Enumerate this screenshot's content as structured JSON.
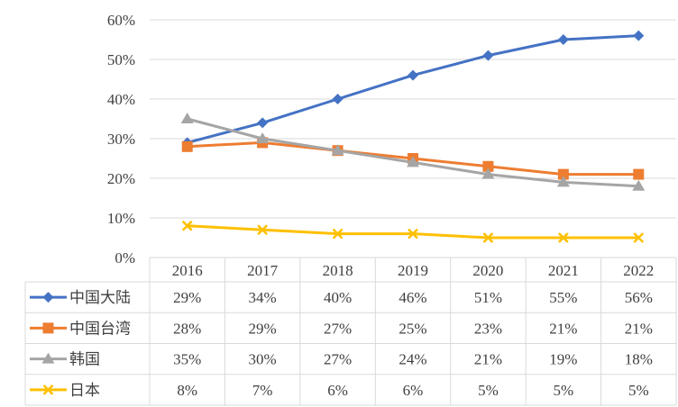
{
  "chart_data": {
    "type": "line",
    "title": "",
    "xlabel": "",
    "ylabel": "",
    "ylim": [
      0,
      60
    ],
    "y_ticks": [
      "0%",
      "10%",
      "20%",
      "30%",
      "40%",
      "50%",
      "60%"
    ],
    "y_tick_values": [
      0,
      10,
      20,
      30,
      40,
      50,
      60
    ],
    "grid": true,
    "legend": "data-table-left",
    "categories": [
      "2016",
      "2017",
      "2018",
      "2019",
      "2020",
      "2021",
      "2022"
    ],
    "series": [
      {
        "name": "中国大陆",
        "color": "#4472C4",
        "marker": "diamond",
        "values": [
          29,
          34,
          40,
          46,
          51,
          55,
          56
        ],
        "labels": [
          "29%",
          "34%",
          "40%",
          "46%",
          "51%",
          "55%",
          "56%"
        ]
      },
      {
        "name": "中国台湾",
        "color": "#ED7D31",
        "marker": "square",
        "values": [
          28,
          29,
          27,
          25,
          23,
          21,
          21
        ],
        "labels": [
          "28%",
          "29%",
          "27%",
          "25%",
          "23%",
          "21%",
          "21%"
        ]
      },
      {
        "name": "韩国",
        "color": "#A5A5A5",
        "marker": "triangle",
        "values": [
          35,
          30,
          27,
          24,
          21,
          19,
          18
        ],
        "labels": [
          "35%",
          "30%",
          "27%",
          "24%",
          "21%",
          "19%",
          "18%"
        ]
      },
      {
        "name": "日本",
        "color": "#FFC000",
        "marker": "x",
        "values": [
          8,
          7,
          6,
          6,
          5,
          5,
          5
        ],
        "labels": [
          "8%",
          "7%",
          "6%",
          "6%",
          "5%",
          "5%",
          "5%"
        ]
      }
    ]
  }
}
